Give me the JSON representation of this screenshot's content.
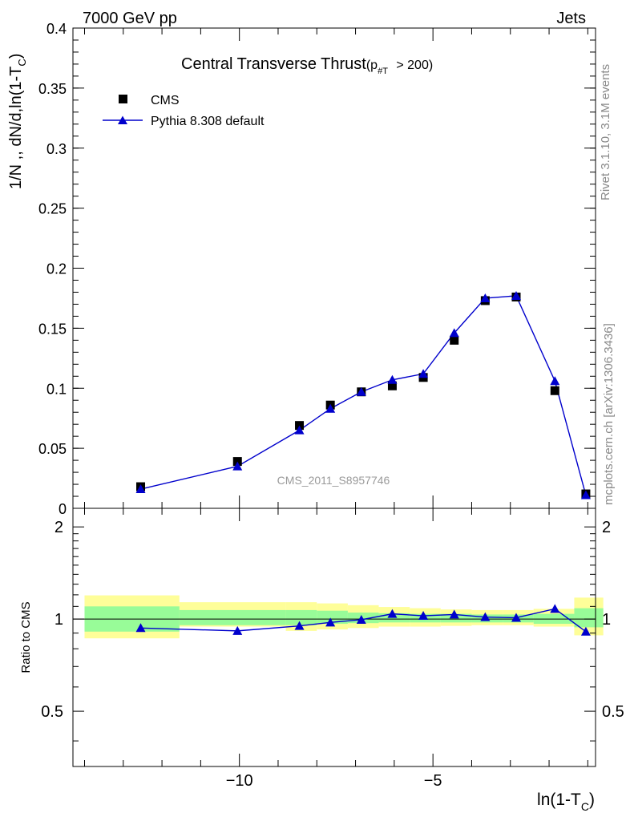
{
  "header": {
    "left": "7000 GeV pp",
    "right": "Jets"
  },
  "side_labels": {
    "rivet": "Rivet 3.1.10,  3.1M events",
    "mcplots": "mcplots.cern.ch [arXiv:1306.3436]"
  },
  "chart_data": [
    {
      "type": "scatter",
      "title": "Central Transverse Thrust",
      "title_sub_prefix": "(p",
      "title_sub_index": "#T",
      "title_sub_suffix": " > 200)",
      "watermark": "CMS_2011_S8957746",
      "ylabel_main": "1/N ,, dN/d,ln(1-T",
      "ylabel_sub": "C",
      "ylabel_end": ")",
      "xlim": [
        -14.3,
        -0.8
      ],
      "ylim": [
        0,
        0.4
      ],
      "yticks": [
        0,
        0.05,
        0.1,
        0.15,
        0.2,
        0.25,
        0.3,
        0.35,
        0.4
      ],
      "ytick_labels": [
        "0",
        "0.05",
        "0.1",
        "0.15",
        "0.2",
        "0.25",
        "0.3",
        "0.35",
        "0.4"
      ],
      "legend_position": "top-left",
      "series": [
        {
          "name": "CMS",
          "marker": "square",
          "color": "#000000",
          "x": [
            -12.55,
            -10.05,
            -8.45,
            -7.65,
            -6.85,
            -6.05,
            -5.25,
            -4.45,
            -3.65,
            -2.85,
            -1.85,
            -1.05
          ],
          "y": [
            0.018,
            0.039,
            0.069,
            0.086,
            0.097,
            0.102,
            0.109,
            0.14,
            0.173,
            0.176,
            0.098,
            0.012
          ]
        },
        {
          "name": "Pythia 8.308 default",
          "marker": "triangle",
          "color": "#0000cc",
          "x": [
            -12.55,
            -10.05,
            -8.45,
            -7.65,
            -6.85,
            -6.05,
            -5.25,
            -4.45,
            -3.65,
            -2.85,
            -1.85,
            -1.05
          ],
          "y": [
            0.016,
            0.035,
            0.065,
            0.083,
            0.097,
            0.107,
            0.112,
            0.146,
            0.175,
            0.177,
            0.106,
            0.011
          ]
        }
      ]
    },
    {
      "type": "scatter",
      "ylabel": "Ratio to CMS",
      "xlabel_main": "ln(1-T",
      "xlabel_sub": "C",
      "xlabel_end": ")",
      "xlim": [
        -14.3,
        -0.8
      ],
      "ylim": [
        0.33,
        2.3
      ],
      "y_scale": "log",
      "yticks": [
        0.5,
        1,
        2
      ],
      "ytick_labels": [
        "0.5",
        "1",
        "2"
      ],
      "xticks": [
        -10,
        -5
      ],
      "xtick_labels": [
        "−10",
        "−5"
      ],
      "reference": 1,
      "bands": [
        {
          "x0": -14.0,
          "x1": -11.55,
          "inner": [
            0.91,
            1.1
          ],
          "outer": [
            0.865,
            1.195
          ]
        },
        {
          "x0": -11.55,
          "x1": -8.8,
          "inner": [
            0.955,
            1.07
          ],
          "outer": [
            0.945,
            1.135
          ]
        },
        {
          "x0": -8.8,
          "x1": -8.0,
          "inner": [
            0.955,
            1.07
          ],
          "outer": [
            0.915,
            1.135
          ]
        },
        {
          "x0": -8.0,
          "x1": -7.2,
          "inner": [
            0.965,
            1.065
          ],
          "outer": [
            0.925,
            1.125
          ]
        },
        {
          "x0": -7.2,
          "x1": -6.4,
          "inner": [
            0.97,
            1.05
          ],
          "outer": [
            0.935,
            1.11
          ]
        },
        {
          "x0": -6.4,
          "x1": -5.6,
          "inner": [
            0.975,
            1.045
          ],
          "outer": [
            0.945,
            1.095
          ]
        },
        {
          "x0": -5.6,
          "x1": -4.8,
          "inner": [
            0.975,
            1.04
          ],
          "outer": [
            0.945,
            1.085
          ]
        },
        {
          "x0": -4.8,
          "x1": -4.0,
          "inner": [
            0.975,
            1.04
          ],
          "outer": [
            0.95,
            1.075
          ]
        },
        {
          "x0": -4.0,
          "x1": -3.2,
          "inner": [
            0.975,
            1.035
          ],
          "outer": [
            0.955,
            1.07
          ]
        },
        {
          "x0": -3.2,
          "x1": -2.4,
          "inner": [
            0.975,
            1.035
          ],
          "outer": [
            0.955,
            1.07
          ]
        },
        {
          "x0": -2.4,
          "x1": -1.35,
          "inner": [
            0.965,
            1.04
          ],
          "outer": [
            0.945,
            1.08
          ]
        },
        {
          "x0": -1.35,
          "x1": -0.6,
          "inner": [
            0.94,
            1.085
          ],
          "outer": [
            0.885,
            1.175
          ]
        }
      ],
      "series": [
        {
          "name": "Pythia 8.308 default",
          "color": "#0000cc",
          "x": [
            -12.55,
            -10.05,
            -8.45,
            -7.65,
            -6.85,
            -6.05,
            -5.25,
            -4.45,
            -3.65,
            -2.85,
            -1.85,
            -1.05
          ],
          "y": [
            0.935,
            0.915,
            0.95,
            0.975,
            0.995,
            1.04,
            1.025,
            1.035,
            1.015,
            1.01,
            1.08,
            0.91
          ]
        }
      ]
    }
  ]
}
